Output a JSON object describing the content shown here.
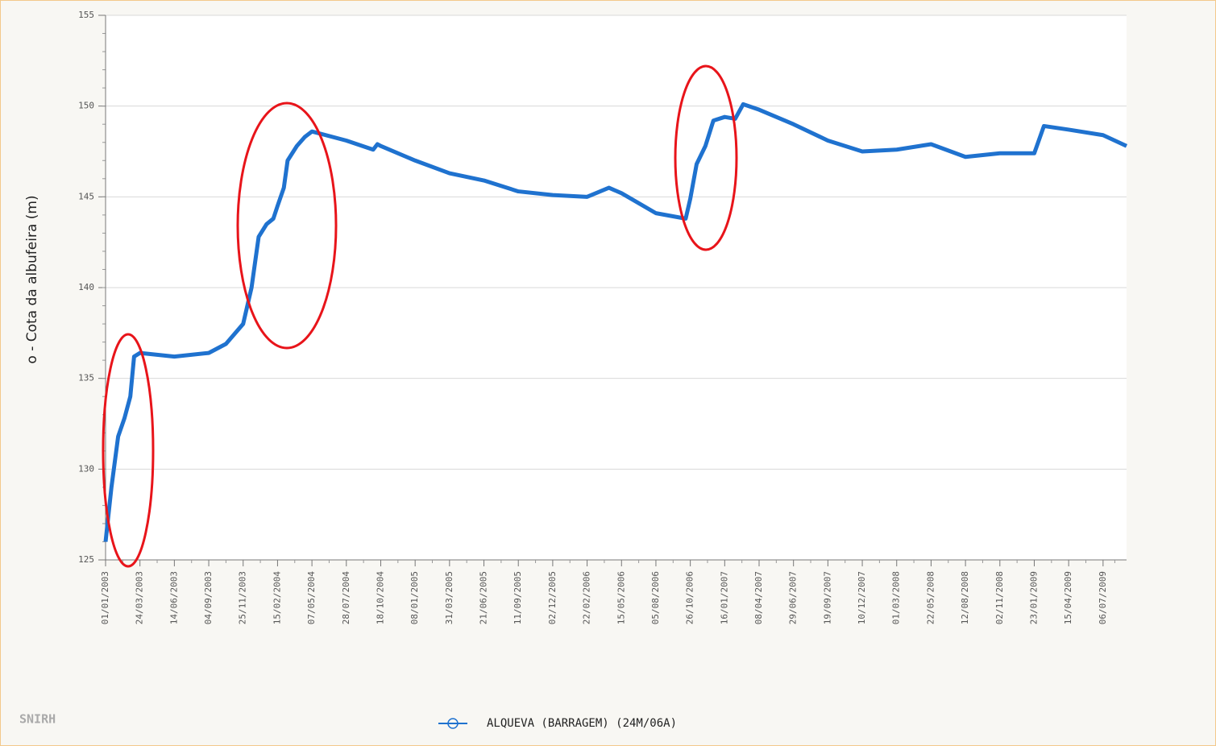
{
  "chart_data": {
    "type": "line",
    "y_label": "o - Cota da albufeira (m)",
    "watermark": "SNIRH",
    "x": [
      "01/01/2003",
      "15/01/2003",
      "31/01/2003",
      "15/02/2003",
      "01/03/2003",
      "10/03/2003",
      "24/03/2003",
      "14/06/2003",
      "04/09/2003",
      "15/10/2003",
      "25/11/2003",
      "15/12/2003",
      "01/01/2004",
      "20/01/2004",
      "05/02/2004",
      "15/02/2004",
      "01/03/2004",
      "10/03/2004",
      "01/04/2004",
      "20/04/2004",
      "07/05/2004",
      "28/07/2004",
      "30/09/2004",
      "10/10/2004",
      "18/10/2004",
      "08/01/2005",
      "31/03/2005",
      "21/06/2005",
      "11/09/2005",
      "02/12/2005",
      "22/02/2006",
      "15/04/2006",
      "15/05/2006",
      "05/08/2006",
      "15/10/2006",
      "26/10/2006",
      "10/11/2006",
      "01/12/2006",
      "20/12/2006",
      "16/01/2007",
      "10/02/2007",
      "01/03/2007",
      "08/04/2007",
      "29/06/2007",
      "19/09/2007",
      "10/12/2007",
      "01/03/2008",
      "22/05/2008",
      "12/08/2008",
      "02/11/2008",
      "23/01/2009",
      "15/02/2009",
      "15/04/2009",
      "06/07/2009",
      "31/08/2009"
    ],
    "series": [
      {
        "name": "ALQUEVA (BARRAGEM) (24M/06A)",
        "color": "#1f72cf",
        "values": [
          126,
          129,
          131.8,
          132.8,
          134,
          136.2,
          136.4,
          136.2,
          136.4,
          136.9,
          138,
          140,
          142.8,
          143.5,
          143.8,
          144.5,
          145.5,
          147,
          147.8,
          148.3,
          148.6,
          148.1,
          147.6,
          147.9,
          147.8,
          147,
          146.3,
          145.9,
          145.3,
          145.1,
          145,
          145.5,
          145.2,
          144.1,
          143.8,
          144.9,
          146.8,
          147.8,
          149.2,
          149.4,
          149.3,
          150.1,
          149.8,
          149,
          148.1,
          147.5,
          147.6,
          147.9,
          147.2,
          147.4,
          147.4,
          148.9,
          148.7,
          148.4,
          147.8
        ]
      }
    ],
    "xlim": [
      "01/01/2003",
      "31/08/2009"
    ],
    "xticks": [
      "01/01/2003",
      "24/03/2003",
      "14/06/2003",
      "04/09/2003",
      "25/11/2003",
      "15/02/2004",
      "07/05/2004",
      "28/07/2004",
      "18/10/2004",
      "08/01/2005",
      "31/03/2005",
      "21/06/2005",
      "11/09/2005",
      "02/12/2005",
      "22/02/2006",
      "15/05/2006",
      "05/08/2006",
      "26/10/2006",
      "16/01/2007",
      "08/04/2007",
      "29/06/2007",
      "19/09/2007",
      "10/12/2007",
      "01/03/2008",
      "22/05/2008",
      "12/08/2008",
      "02/11/2008",
      "23/01/2009",
      "15/04/2009",
      "06/07/2009"
    ],
    "ylim": [
      125,
      155
    ],
    "yticks": [
      125,
      130,
      135,
      140,
      145,
      150,
      155
    ],
    "grid": true
  }
}
